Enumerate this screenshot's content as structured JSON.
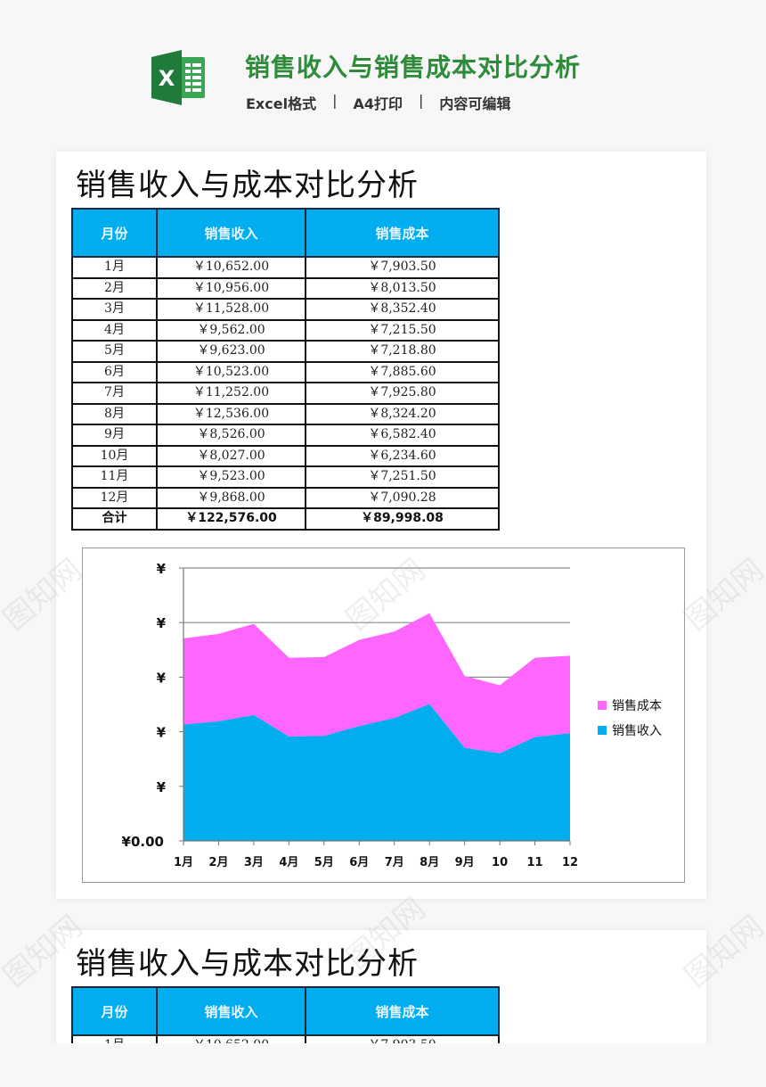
{
  "header": {
    "title": "销售收入与销售成本对比分析",
    "tags": [
      "Excel格式",
      "A4打印",
      "内容可编辑"
    ],
    "separator": "|",
    "logo_icon": "excel-icon",
    "title_color": "#2e8b3a"
  },
  "document": {
    "title": "销售收入与成本对比分析",
    "table": {
      "headers": [
        "月份",
        "销售收入",
        "销售成本"
      ],
      "rows": [
        {
          "month": "1月",
          "revenue": "￥10,652.00",
          "cost": "￥7,903.50"
        },
        {
          "month": "2月",
          "revenue": "￥10,956.00",
          "cost": "￥8,013.50"
        },
        {
          "month": "3月",
          "revenue": "￥11,528.00",
          "cost": "￥8,352.40"
        },
        {
          "month": "4月",
          "revenue": "￥9,562.00",
          "cost": "￥7,215.50"
        },
        {
          "month": "5月",
          "revenue": "￥9,623.00",
          "cost": "￥7,218.80"
        },
        {
          "month": "6月",
          "revenue": "￥10,523.00",
          "cost": "￥7,885.60"
        },
        {
          "month": "7月",
          "revenue": "￥11,252.00",
          "cost": "￥7,925.80"
        },
        {
          "month": "8月",
          "revenue": "￥12,536.00",
          "cost": "￥8,324.20"
        },
        {
          "month": "9月",
          "revenue": "￥8,526.00",
          "cost": "￥6,582.40"
        },
        {
          "month": "10月",
          "revenue": "￥8,027.00",
          "cost": "￥6,234.60"
        },
        {
          "month": "11月",
          "revenue": "￥9,523.00",
          "cost": "￥7,251.50"
        },
        {
          "month": "12月",
          "revenue": "￥9,868.00",
          "cost": "￥7,090.28"
        }
      ],
      "total": {
        "month": "合计",
        "revenue": "￥122,576.00",
        "cost": "￥89,998.08"
      },
      "header_color": "#00aeef"
    }
  },
  "chart_data": {
    "type": "area",
    "stacked": true,
    "title": "",
    "xlabel": "",
    "ylabel": "",
    "categories": [
      "1月",
      "2月",
      "3月",
      "4月",
      "5月",
      "6月",
      "7月",
      "8月",
      "9月",
      "10",
      "11",
      "12"
    ],
    "series": [
      {
        "name": "销售收入",
        "color": "#00aeef",
        "values": [
          10652,
          10956,
          11528,
          9562,
          9623,
          10523,
          11252,
          12536,
          8526,
          8027,
          9523,
          9868
        ]
      },
      {
        "name": "销售成本",
        "color": "#ff66ff",
        "values": [
          7903.5,
          8013.5,
          8352.4,
          7215.5,
          7218.8,
          7885.6,
          7925.8,
          8324.2,
          6582.4,
          6234.6,
          7251.5,
          7090.28
        ]
      }
    ],
    "y_tick_labels": [
      "¥0.00",
      "¥",
      "¥",
      "¥",
      "¥",
      "¥"
    ],
    "ylim": [
      0,
      25000
    ],
    "y_tick_step": 5000,
    "grid": true,
    "legend_position": "right",
    "legend": [
      "销售成本",
      "销售收入"
    ]
  },
  "second_page": {
    "title": "销售收入与成本对比分析",
    "headers": [
      "月份",
      "销售收入",
      "销售成本"
    ],
    "first_row_partial": {
      "month": "1月",
      "revenue": "￥10,652.00",
      "cost": "￥7,903.50"
    }
  },
  "watermark": "图知网"
}
